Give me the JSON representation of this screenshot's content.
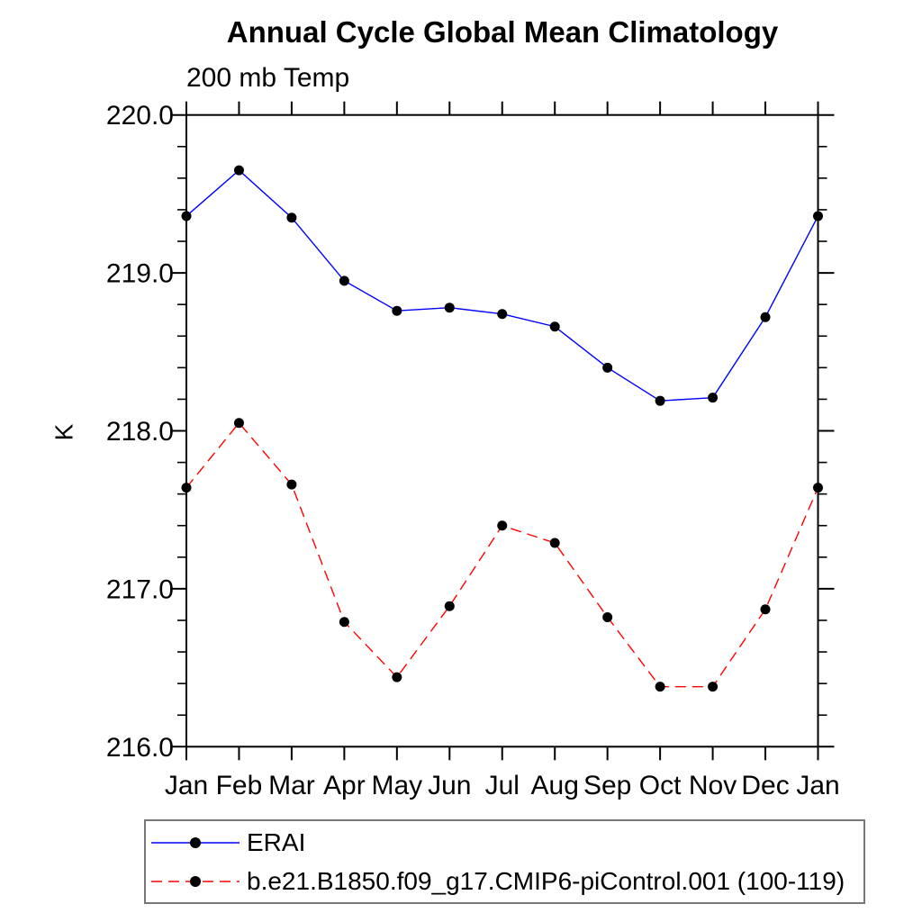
{
  "title": "Annual Cycle Global Mean Climatology",
  "subtitle": "200 mb Temp",
  "ylabel": "K",
  "colors": {
    "erai_line": "#0000ff",
    "model_line": "#ff0000",
    "marker": "#000000",
    "axis": "#000000",
    "legend_border": "#777777",
    "background": "#ffffff",
    "text": "#000000"
  },
  "legend": {
    "items": [
      {
        "label": "ERAI",
        "line_style": "solid",
        "line_color": "#0000ff",
        "marker": "black-dot"
      },
      {
        "label": "b.e21.B1850.f09_g17.CMIP6-piControl.001 (100-119)",
        "line_style": "dashed",
        "line_color": "#ff0000",
        "marker": "black-dot"
      }
    ]
  },
  "chart_data": {
    "type": "line",
    "title": "Annual Cycle Global Mean Climatology",
    "subtitle": "200 mb Temp",
    "xlabel": "",
    "ylabel": "K",
    "categories": [
      "Jan",
      "Feb",
      "Mar",
      "Apr",
      "May",
      "Jun",
      "Jul",
      "Aug",
      "Sep",
      "Oct",
      "Nov",
      "Dec",
      "Jan"
    ],
    "ylim": [
      216.0,
      220.0
    ],
    "y_major_ticks": [
      216.0,
      217.0,
      218.0,
      219.0,
      220.0
    ],
    "y_tick_labels": [
      "216.0",
      "217.0",
      "218.0",
      "219.0",
      "220.0"
    ],
    "y_minor_step": 0.2,
    "grid": false,
    "legend_position": "below-left",
    "series": [
      {
        "name": "ERAI",
        "color": "#0000ff",
        "style": "solid",
        "marker": "circle",
        "marker_color": "#000000",
        "values": [
          219.36,
          219.65,
          219.35,
          218.95,
          218.76,
          218.78,
          218.74,
          218.66,
          218.4,
          218.19,
          218.21,
          218.72,
          219.36
        ]
      },
      {
        "name": "b.e21.B1850.f09_g17.CMIP6-piControl.001 (100-119)",
        "color": "#ff0000",
        "style": "dashed",
        "marker": "circle",
        "marker_color": "#000000",
        "values": [
          217.64,
          218.05,
          217.66,
          216.79,
          216.44,
          216.89,
          217.4,
          217.29,
          216.82,
          216.38,
          216.38,
          216.87,
          217.64
        ]
      }
    ]
  }
}
